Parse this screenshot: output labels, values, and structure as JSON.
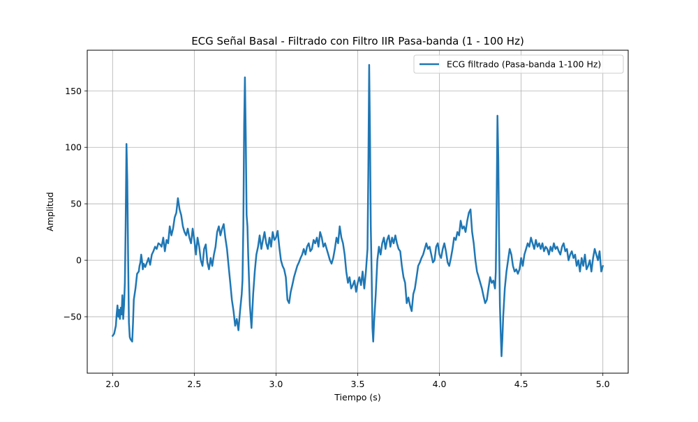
{
  "chart_data": {
    "type": "line",
    "title": "ECG Señal Basal - Filtrado con Filtro IIR Pasa-banda (1 - 100 Hz)",
    "xlabel": "Tiempo (s)",
    "ylabel": "Amplitud",
    "xlim": [
      1.845,
      5.155
    ],
    "ylim": [
      -100,
      186
    ],
    "xticks": [
      2.0,
      2.5,
      3.0,
      3.5,
      4.0,
      4.5,
      5.0
    ],
    "xtick_labels": [
      "2.0",
      "2.5",
      "3.0",
      "3.5",
      "4.0",
      "4.5",
      "5.0"
    ],
    "yticks": [
      -50,
      0,
      50,
      100,
      150
    ],
    "ytick_labels": [
      "−50",
      "0",
      "50",
      "100",
      "150"
    ],
    "grid": true,
    "legend_position": "top-right",
    "series": [
      {
        "name": "ECG filtrado (Pasa-banda 1-100 Hz)",
        "color": "#1f77b4",
        "points": [
          [
            2.0,
            -67
          ],
          [
            2.01,
            -65
          ],
          [
            2.02,
            -58
          ],
          [
            2.025,
            -48
          ],
          [
            2.03,
            -40
          ],
          [
            2.035,
            -50
          ],
          [
            2.04,
            -44
          ],
          [
            2.045,
            -52
          ],
          [
            2.05,
            -42
          ],
          [
            2.055,
            -48
          ],
          [
            2.06,
            -31
          ],
          [
            2.065,
            -52
          ],
          [
            2.07,
            -40
          ],
          [
            2.075,
            -20
          ],
          [
            2.08,
            30
          ],
          [
            2.085,
            103
          ],
          [
            2.09,
            70
          ],
          [
            2.095,
            5
          ],
          [
            2.1,
            -55
          ],
          [
            2.105,
            -68
          ],
          [
            2.11,
            -70
          ],
          [
            2.12,
            -72
          ],
          [
            2.125,
            -55
          ],
          [
            2.13,
            -35
          ],
          [
            2.14,
            -25
          ],
          [
            2.15,
            -12
          ],
          [
            2.16,
            -10
          ],
          [
            2.165,
            -5
          ],
          [
            2.17,
            -2
          ],
          [
            2.175,
            5
          ],
          [
            2.18,
            0
          ],
          [
            2.185,
            -8
          ],
          [
            2.19,
            -3
          ],
          [
            2.2,
            -6
          ],
          [
            2.21,
            -2
          ],
          [
            2.22,
            2
          ],
          [
            2.23,
            -4
          ],
          [
            2.24,
            5
          ],
          [
            2.25,
            8
          ],
          [
            2.26,
            12
          ],
          [
            2.27,
            10
          ],
          [
            2.28,
            15
          ],
          [
            2.29,
            14
          ],
          [
            2.3,
            12
          ],
          [
            2.31,
            20
          ],
          [
            2.32,
            8
          ],
          [
            2.33,
            18
          ],
          [
            2.34,
            15
          ],
          [
            2.35,
            30
          ],
          [
            2.36,
            22
          ],
          [
            2.37,
            28
          ],
          [
            2.38,
            38
          ],
          [
            2.39,
            42
          ],
          [
            2.4,
            55
          ],
          [
            2.41,
            45
          ],
          [
            2.42,
            40
          ],
          [
            2.43,
            30
          ],
          [
            2.44,
            25
          ],
          [
            2.45,
            22
          ],
          [
            2.46,
            28
          ],
          [
            2.47,
            20
          ],
          [
            2.48,
            15
          ],
          [
            2.49,
            28
          ],
          [
            2.5,
            18
          ],
          [
            2.51,
            5
          ],
          [
            2.52,
            20
          ],
          [
            2.53,
            12
          ],
          [
            2.54,
            0
          ],
          [
            2.55,
            -5
          ],
          [
            2.56,
            10
          ],
          [
            2.57,
            14
          ],
          [
            2.58,
            -2
          ],
          [
            2.59,
            -8
          ],
          [
            2.6,
            2
          ],
          [
            2.61,
            -5
          ],
          [
            2.62,
            5
          ],
          [
            2.63,
            12
          ],
          [
            2.64,
            25
          ],
          [
            2.65,
            30
          ],
          [
            2.66,
            22
          ],
          [
            2.67,
            28
          ],
          [
            2.68,
            32
          ],
          [
            2.69,
            20
          ],
          [
            2.7,
            10
          ],
          [
            2.71,
            -5
          ],
          [
            2.72,
            -20
          ],
          [
            2.73,
            -35
          ],
          [
            2.74,
            -45
          ],
          [
            2.75,
            -58
          ],
          [
            2.76,
            -52
          ],
          [
            2.77,
            -62
          ],
          [
            2.78,
            -45
          ],
          [
            2.79,
            -30
          ],
          [
            2.795,
            -18
          ],
          [
            2.8,
            30
          ],
          [
            2.805,
            120
          ],
          [
            2.81,
            162
          ],
          [
            2.815,
            110
          ],
          [
            2.82,
            40
          ],
          [
            2.825,
            30
          ],
          [
            2.83,
            5
          ],
          [
            2.84,
            -40
          ],
          [
            2.85,
            -60
          ],
          [
            2.86,
            -30
          ],
          [
            2.87,
            -10
          ],
          [
            2.88,
            5
          ],
          [
            2.89,
            12
          ],
          [
            2.9,
            22
          ],
          [
            2.91,
            10
          ],
          [
            2.92,
            18
          ],
          [
            2.93,
            25
          ],
          [
            2.94,
            15
          ],
          [
            2.95,
            10
          ],
          [
            2.96,
            20
          ],
          [
            2.97,
            12
          ],
          [
            2.98,
            25
          ],
          [
            2.99,
            18
          ],
          [
            3.0,
            20
          ],
          [
            3.01,
            26
          ],
          [
            3.02,
            12
          ],
          [
            3.03,
            0
          ],
          [
            3.04,
            -5
          ],
          [
            3.05,
            -8
          ],
          [
            3.06,
            -15
          ],
          [
            3.07,
            -35
          ],
          [
            3.08,
            -38
          ],
          [
            3.09,
            -28
          ],
          [
            3.1,
            -22
          ],
          [
            3.11,
            -15
          ],
          [
            3.12,
            -10
          ],
          [
            3.13,
            -5
          ],
          [
            3.14,
            -2
          ],
          [
            3.15,
            2
          ],
          [
            3.16,
            5
          ],
          [
            3.17,
            10
          ],
          [
            3.18,
            5
          ],
          [
            3.19,
            12
          ],
          [
            3.2,
            15
          ],
          [
            3.21,
            8
          ],
          [
            3.22,
            10
          ],
          [
            3.23,
            18
          ],
          [
            3.24,
            15
          ],
          [
            3.25,
            20
          ],
          [
            3.26,
            12
          ],
          [
            3.27,
            25
          ],
          [
            3.28,
            20
          ],
          [
            3.29,
            12
          ],
          [
            3.3,
            15
          ],
          [
            3.31,
            10
          ],
          [
            3.32,
            5
          ],
          [
            3.33,
            0
          ],
          [
            3.34,
            -3
          ],
          [
            3.35,
            2
          ],
          [
            3.36,
            10
          ],
          [
            3.37,
            20
          ],
          [
            3.38,
            15
          ],
          [
            3.39,
            30
          ],
          [
            3.4,
            20
          ],
          [
            3.41,
            15
          ],
          [
            3.42,
            5
          ],
          [
            3.43,
            -10
          ],
          [
            3.44,
            -20
          ],
          [
            3.45,
            -15
          ],
          [
            3.46,
            -25
          ],
          [
            3.47,
            -22
          ],
          [
            3.48,
            -18
          ],
          [
            3.49,
            -28
          ],
          [
            3.5,
            -20
          ],
          [
            3.51,
            -15
          ],
          [
            3.52,
            -22
          ],
          [
            3.53,
            -10
          ],
          [
            3.54,
            -25
          ],
          [
            3.55,
            -10
          ],
          [
            3.56,
            10
          ],
          [
            3.565,
            80
          ],
          [
            3.57,
            173
          ],
          [
            3.575,
            110
          ],
          [
            3.58,
            30
          ],
          [
            3.585,
            -10
          ],
          [
            3.59,
            -60
          ],
          [
            3.595,
            -72
          ],
          [
            3.6,
            -55
          ],
          [
            3.61,
            -30
          ],
          [
            3.62,
            0
          ],
          [
            3.63,
            12
          ],
          [
            3.64,
            5
          ],
          [
            3.65,
            15
          ],
          [
            3.66,
            20
          ],
          [
            3.67,
            10
          ],
          [
            3.68,
            18
          ],
          [
            3.69,
            22
          ],
          [
            3.7,
            12
          ],
          [
            3.71,
            20
          ],
          [
            3.72,
            15
          ],
          [
            3.73,
            22
          ],
          [
            3.74,
            15
          ],
          [
            3.75,
            10
          ],
          [
            3.76,
            8
          ],
          [
            3.77,
            -5
          ],
          [
            3.78,
            -15
          ],
          [
            3.79,
            -20
          ],
          [
            3.8,
            -38
          ],
          [
            3.81,
            -33
          ],
          [
            3.82,
            -40
          ],
          [
            3.83,
            -45
          ],
          [
            3.84,
            -30
          ],
          [
            3.85,
            -25
          ],
          [
            3.86,
            -15
          ],
          [
            3.87,
            -5
          ],
          [
            3.88,
            -2
          ],
          [
            3.89,
            2
          ],
          [
            3.9,
            5
          ],
          [
            3.91,
            10
          ],
          [
            3.92,
            15
          ],
          [
            3.93,
            10
          ],
          [
            3.94,
            12
          ],
          [
            3.95,
            5
          ],
          [
            3.96,
            -2
          ],
          [
            3.97,
            0
          ],
          [
            3.98,
            12
          ],
          [
            3.99,
            15
          ],
          [
            4.0,
            5
          ],
          [
            4.01,
            2
          ],
          [
            4.02,
            10
          ],
          [
            4.03,
            15
          ],
          [
            4.04,
            8
          ],
          [
            4.05,
            -2
          ],
          [
            4.06,
            -5
          ],
          [
            4.07,
            2
          ],
          [
            4.08,
            10
          ],
          [
            4.09,
            20
          ],
          [
            4.1,
            18
          ],
          [
            4.11,
            25
          ],
          [
            4.12,
            22
          ],
          [
            4.13,
            35
          ],
          [
            4.14,
            28
          ],
          [
            4.15,
            30
          ],
          [
            4.16,
            25
          ],
          [
            4.17,
            35
          ],
          [
            4.18,
            42
          ],
          [
            4.19,
            45
          ],
          [
            4.2,
            25
          ],
          [
            4.21,
            15
          ],
          [
            4.22,
            0
          ],
          [
            4.23,
            -10
          ],
          [
            4.24,
            -15
          ],
          [
            4.25,
            -20
          ],
          [
            4.26,
            -25
          ],
          [
            4.27,
            -32
          ],
          [
            4.28,
            -38
          ],
          [
            4.29,
            -35
          ],
          [
            4.3,
            -25
          ],
          [
            4.31,
            -15
          ],
          [
            4.32,
            -20
          ],
          [
            4.33,
            -18
          ],
          [
            4.34,
            -25
          ],
          [
            4.345,
            -10
          ],
          [
            4.35,
            50
          ],
          [
            4.355,
            128
          ],
          [
            4.36,
            90
          ],
          [
            4.365,
            20
          ],
          [
            4.37,
            -40
          ],
          [
            4.375,
            -65
          ],
          [
            4.38,
            -85
          ],
          [
            4.385,
            -70
          ],
          [
            4.39,
            -50
          ],
          [
            4.4,
            -25
          ],
          [
            4.41,
            -10
          ],
          [
            4.42,
            0
          ],
          [
            4.43,
            10
          ],
          [
            4.44,
            5
          ],
          [
            4.45,
            -5
          ],
          [
            4.46,
            -10
          ],
          [
            4.47,
            -8
          ],
          [
            4.48,
            -12
          ],
          [
            4.49,
            -8
          ],
          [
            4.5,
            2
          ],
          [
            4.51,
            -5
          ],
          [
            4.52,
            5
          ],
          [
            4.53,
            10
          ],
          [
            4.54,
            15
          ],
          [
            4.55,
            12
          ],
          [
            4.56,
            20
          ],
          [
            4.57,
            15
          ],
          [
            4.58,
            10
          ],
          [
            4.59,
            18
          ],
          [
            4.6,
            12
          ],
          [
            4.61,
            15
          ],
          [
            4.62,
            10
          ],
          [
            4.63,
            15
          ],
          [
            4.64,
            8
          ],
          [
            4.65,
            12
          ],
          [
            4.66,
            10
          ],
          [
            4.67,
            5
          ],
          [
            4.68,
            12
          ],
          [
            4.69,
            8
          ],
          [
            4.7,
            15
          ],
          [
            4.71,
            10
          ],
          [
            4.72,
            12
          ],
          [
            4.73,
            8
          ],
          [
            4.74,
            5
          ],
          [
            4.75,
            12
          ],
          [
            4.76,
            15
          ],
          [
            4.77,
            8
          ],
          [
            4.78,
            10
          ],
          [
            4.79,
            0
          ],
          [
            4.8,
            5
          ],
          [
            4.81,
            8
          ],
          [
            4.82,
            2
          ],
          [
            4.83,
            5
          ],
          [
            4.84,
            -5
          ],
          [
            4.85,
            0
          ],
          [
            4.86,
            -10
          ],
          [
            4.87,
            2
          ],
          [
            4.88,
            -5
          ],
          [
            4.89,
            5
          ],
          [
            4.9,
            -8
          ],
          [
            4.91,
            -5
          ],
          [
            4.92,
            0
          ],
          [
            4.93,
            -10
          ],
          [
            4.94,
            2
          ],
          [
            4.95,
            10
          ],
          [
            4.96,
            5
          ],
          [
            4.97,
            0
          ],
          [
            4.98,
            8
          ],
          [
            4.99,
            -10
          ],
          [
            5.0,
            -5
          ]
        ]
      }
    ]
  }
}
